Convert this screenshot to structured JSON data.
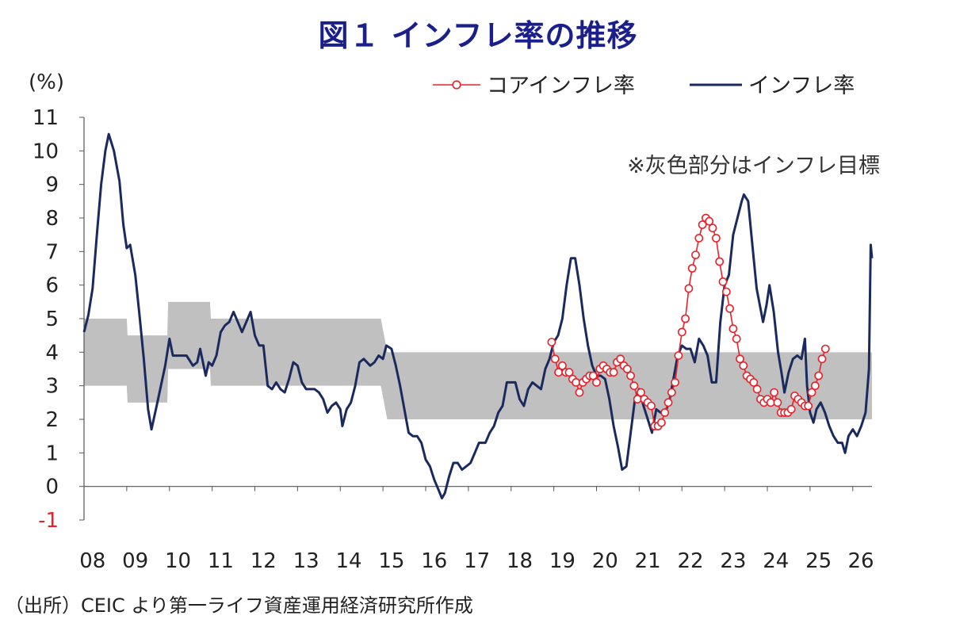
{
  "chart_data": {
    "type": "line",
    "title": "図１ インフレ率の推移",
    "ylabel": "(%)",
    "ylim": [
      -1,
      11
    ],
    "yticks": [
      -1,
      0,
      1,
      2,
      3,
      4,
      5,
      6,
      7,
      8,
      9,
      10,
      11
    ],
    "x_ticks": [
      "08",
      "09",
      "10",
      "11",
      "12",
      "13",
      "14",
      "15",
      "16",
      "17",
      "18",
      "19",
      "20",
      "21",
      "22",
      "23",
      "24",
      "25",
      "26"
    ],
    "xlim": [
      2008.0,
      2026.45
    ],
    "annotation": "※灰色部分はインフレ目標",
    "source": "（出所）CEIC より第一ライフ資産運用経済研究所作成",
    "legend_position": "top-right",
    "colors": {
      "core": "#e8222a",
      "headline": "#1b2a5e",
      "band": "#c0c0c0",
      "negative_tick": "#e8222a"
    },
    "target_band": [
      {
        "x": 2008.0,
        "low": 3.0,
        "high": 5.0
      },
      {
        "x": 2009.0,
        "low": 3.0,
        "high": 5.0
      },
      {
        "x": 2009.02,
        "low": 2.5,
        "high": 4.5
      },
      {
        "x": 2009.95,
        "low": 2.5,
        "high": 4.5
      },
      {
        "x": 2009.97,
        "low": 3.5,
        "high": 5.5
      },
      {
        "x": 2010.95,
        "low": 3.5,
        "high": 5.5
      },
      {
        "x": 2010.97,
        "low": 3.0,
        "high": 5.0
      },
      {
        "x": 2014.95,
        "low": 3.0,
        "high": 5.0
      },
      {
        "x": 2015.1,
        "low": 2.0,
        "high": 4.0
      },
      {
        "x": 2026.45,
        "low": 2.0,
        "high": 4.0
      }
    ],
    "series": [
      {
        "name": "インフレ率",
        "points": [
          [
            2008.0,
            4.6
          ],
          [
            2008.1,
            5.1
          ],
          [
            2008.2,
            5.9
          ],
          [
            2008.3,
            7.5
          ],
          [
            2008.4,
            9.0
          ],
          [
            2008.5,
            10.0
          ],
          [
            2008.58,
            10.5
          ],
          [
            2008.7,
            10.0
          ],
          [
            2008.83,
            9.1
          ],
          [
            2008.92,
            7.8
          ],
          [
            2009.0,
            7.1
          ],
          [
            2009.08,
            7.2
          ],
          [
            2009.2,
            6.3
          ],
          [
            2009.3,
            5.1
          ],
          [
            2009.4,
            3.8
          ],
          [
            2009.5,
            2.3
          ],
          [
            2009.58,
            1.7
          ],
          [
            2009.7,
            2.4
          ],
          [
            2009.8,
            3.0
          ],
          [
            2009.9,
            3.6
          ],
          [
            2010.0,
            4.4
          ],
          [
            2010.08,
            3.9
          ],
          [
            2010.2,
            3.9
          ],
          [
            2010.4,
            3.9
          ],
          [
            2010.55,
            3.6
          ],
          [
            2010.65,
            3.7
          ],
          [
            2010.72,
            4.1
          ],
          [
            2010.85,
            3.3
          ],
          [
            2010.92,
            3.7
          ],
          [
            2011.0,
            3.6
          ],
          [
            2011.1,
            3.9
          ],
          [
            2011.2,
            4.6
          ],
          [
            2011.3,
            4.8
          ],
          [
            2011.4,
            4.9
          ],
          [
            2011.5,
            5.2
          ],
          [
            2011.6,
            4.9
          ],
          [
            2011.7,
            4.6
          ],
          [
            2011.8,
            4.9
          ],
          [
            2011.9,
            5.2
          ],
          [
            2012.0,
            4.5
          ],
          [
            2012.1,
            4.2
          ],
          [
            2012.2,
            4.2
          ],
          [
            2012.3,
            3.0
          ],
          [
            2012.4,
            2.9
          ],
          [
            2012.5,
            3.1
          ],
          [
            2012.6,
            2.9
          ],
          [
            2012.7,
            2.8
          ],
          [
            2012.8,
            3.2
          ],
          [
            2012.9,
            3.7
          ],
          [
            2013.0,
            3.6
          ],
          [
            2013.1,
            3.1
          ],
          [
            2013.2,
            2.9
          ],
          [
            2013.3,
            2.9
          ],
          [
            2013.4,
            2.9
          ],
          [
            2013.5,
            2.8
          ],
          [
            2013.6,
            2.6
          ],
          [
            2013.7,
            2.2
          ],
          [
            2013.8,
            2.4
          ],
          [
            2013.9,
            2.5
          ],
          [
            2014.0,
            2.3
          ],
          [
            2014.05,
            1.8
          ],
          [
            2014.15,
            2.3
          ],
          [
            2014.25,
            2.5
          ],
          [
            2014.35,
            3.0
          ],
          [
            2014.45,
            3.7
          ],
          [
            2014.55,
            3.8
          ],
          [
            2014.7,
            3.6
          ],
          [
            2014.8,
            3.7
          ],
          [
            2014.9,
            3.9
          ],
          [
            2015.0,
            3.8
          ],
          [
            2015.08,
            4.2
          ],
          [
            2015.2,
            4.1
          ],
          [
            2015.3,
            3.6
          ],
          [
            2015.4,
            3.0
          ],
          [
            2015.5,
            2.3
          ],
          [
            2015.6,
            1.6
          ],
          [
            2015.7,
            1.5
          ],
          [
            2015.8,
            1.5
          ],
          [
            2015.9,
            1.3
          ],
          [
            2016.0,
            0.8
          ],
          [
            2016.1,
            0.6
          ],
          [
            2016.2,
            0.2
          ],
          [
            2016.3,
            -0.1
          ],
          [
            2016.38,
            -0.35
          ],
          [
            2016.45,
            -0.2
          ],
          [
            2016.55,
            0.3
          ],
          [
            2016.65,
            0.7
          ],
          [
            2016.75,
            0.7
          ],
          [
            2016.85,
            0.5
          ],
          [
            2016.95,
            0.6
          ],
          [
            2017.05,
            0.7
          ],
          [
            2017.15,
            1.0
          ],
          [
            2017.25,
            1.3
          ],
          [
            2017.4,
            1.3
          ],
          [
            2017.5,
            1.6
          ],
          [
            2017.6,
            1.8
          ],
          [
            2017.7,
            2.2
          ],
          [
            2017.8,
            2.4
          ],
          [
            2017.9,
            3.1
          ],
          [
            2018.0,
            3.1
          ],
          [
            2018.1,
            3.1
          ],
          [
            2018.2,
            2.6
          ],
          [
            2018.3,
            2.4
          ],
          [
            2018.4,
            2.9
          ],
          [
            2018.5,
            3.1
          ],
          [
            2018.6,
            3.0
          ],
          [
            2018.7,
            2.9
          ],
          [
            2018.8,
            3.5
          ],
          [
            2018.9,
            3.8
          ],
          [
            2019.0,
            4.3
          ],
          [
            2019.1,
            4.5
          ],
          [
            2019.2,
            5.0
          ],
          [
            2019.3,
            6.0
          ],
          [
            2019.4,
            6.8
          ],
          [
            2019.5,
            6.8
          ],
          [
            2019.6,
            6.0
          ],
          [
            2019.7,
            5.0
          ],
          [
            2019.8,
            4.2
          ],
          [
            2019.9,
            3.6
          ],
          [
            2020.0,
            3.3
          ],
          [
            2020.1,
            3.3
          ],
          [
            2020.2,
            3.2
          ],
          [
            2020.3,
            2.6
          ],
          [
            2020.4,
            1.8
          ],
          [
            2020.5,
            1.2
          ],
          [
            2020.6,
            0.5
          ],
          [
            2020.7,
            0.6
          ],
          [
            2020.8,
            1.6
          ],
          [
            2020.9,
            2.6
          ],
          [
            2021.0,
            2.9
          ],
          [
            2021.1,
            2.4
          ],
          [
            2021.2,
            2.0
          ],
          [
            2021.3,
            1.6
          ],
          [
            2021.4,
            2.3
          ],
          [
            2021.5,
            2.2
          ],
          [
            2021.6,
            2.2
          ],
          [
            2021.7,
            2.5
          ],
          [
            2021.8,
            3.2
          ],
          [
            2021.9,
            3.9
          ],
          [
            2022.0,
            4.2
          ],
          [
            2022.1,
            4.1
          ],
          [
            2022.2,
            4.1
          ],
          [
            2022.3,
            3.7
          ],
          [
            2022.4,
            4.4
          ],
          [
            2022.5,
            4.2
          ],
          [
            2022.6,
            3.9
          ],
          [
            2022.7,
            3.1
          ],
          [
            2022.8,
            3.1
          ],
          [
            2022.9,
            4.9
          ],
          [
            2023.0,
            6.0
          ],
          [
            2023.1,
            6.3
          ],
          [
            2023.2,
            7.5
          ],
          [
            2023.3,
            8.0
          ],
          [
            2023.4,
            8.5
          ],
          [
            2023.45,
            8.7
          ],
          [
            2023.55,
            8.5
          ],
          [
            2023.65,
            7.2
          ],
          [
            2023.75,
            5.9
          ],
          [
            2023.9,
            4.9
          ],
          [
            2023.98,
            5.4
          ],
          [
            2024.05,
            6.0
          ],
          [
            2024.15,
            5.2
          ],
          [
            2024.25,
            4.0
          ],
          [
            2024.33,
            3.4
          ],
          [
            2024.4,
            2.8
          ],
          [
            2024.5,
            3.4
          ],
          [
            2024.6,
            3.8
          ],
          [
            2024.7,
            3.9
          ],
          [
            2024.8,
            3.8
          ],
          [
            2024.88,
            4.4
          ],
          [
            2024.93,
            3.0
          ],
          [
            2025.0,
            2.2
          ],
          [
            2025.08,
            1.9
          ],
          [
            2025.15,
            2.3
          ],
          [
            2025.25,
            2.5
          ],
          [
            2025.35,
            2.2
          ],
          [
            2025.45,
            1.8
          ],
          [
            2025.55,
            1.5
          ],
          [
            2025.65,
            1.3
          ],
          [
            2025.75,
            1.3
          ],
          [
            2025.82,
            1.0
          ],
          [
            2025.9,
            1.5
          ],
          [
            2026.0,
            1.7
          ],
          [
            2026.1,
            1.5
          ],
          [
            2026.2,
            1.8
          ],
          [
            2026.3,
            2.2
          ],
          [
            2026.38,
            3.5
          ],
          [
            2026.42,
            7.2
          ],
          [
            2026.45,
            6.8
          ]
        ]
      },
      {
        "name": "コアインフレ率",
        "points": [
          [
            2018.95,
            4.3
          ],
          [
            2019.03,
            3.8
          ],
          [
            2019.11,
            3.4
          ],
          [
            2019.2,
            3.6
          ],
          [
            2019.28,
            3.4
          ],
          [
            2019.36,
            3.4
          ],
          [
            2019.44,
            3.2
          ],
          [
            2019.52,
            3.1
          ],
          [
            2019.6,
            2.8
          ],
          [
            2019.68,
            3.1
          ],
          [
            2019.76,
            3.2
          ],
          [
            2019.84,
            3.3
          ],
          [
            2019.92,
            3.3
          ],
          [
            2020.0,
            3.1
          ],
          [
            2020.08,
            3.5
          ],
          [
            2020.16,
            3.6
          ],
          [
            2020.24,
            3.5
          ],
          [
            2020.32,
            3.4
          ],
          [
            2020.4,
            3.4
          ],
          [
            2020.48,
            3.7
          ],
          [
            2020.56,
            3.8
          ],
          [
            2020.64,
            3.6
          ],
          [
            2020.72,
            3.5
          ],
          [
            2020.8,
            3.3
          ],
          [
            2020.88,
            3.0
          ],
          [
            2020.96,
            2.6
          ],
          [
            2021.04,
            2.8
          ],
          [
            2021.12,
            2.6
          ],
          [
            2021.2,
            2.5
          ],
          [
            2021.28,
            2.4
          ],
          [
            2021.36,
            1.8
          ],
          [
            2021.44,
            1.8
          ],
          [
            2021.52,
            1.9
          ],
          [
            2021.6,
            2.2
          ],
          [
            2021.68,
            2.5
          ],
          [
            2021.76,
            2.8
          ],
          [
            2021.84,
            3.1
          ],
          [
            2021.92,
            3.9
          ],
          [
            2022.0,
            4.6
          ],
          [
            2022.08,
            5.0
          ],
          [
            2022.16,
            5.9
          ],
          [
            2022.24,
            6.5
          ],
          [
            2022.32,
            6.9
          ],
          [
            2022.4,
            7.4
          ],
          [
            2022.48,
            7.8
          ],
          [
            2022.56,
            8.0
          ],
          [
            2022.64,
            7.9
          ],
          [
            2022.72,
            7.7
          ],
          [
            2022.8,
            7.4
          ],
          [
            2022.88,
            6.7
          ],
          [
            2022.96,
            6.1
          ],
          [
            2023.04,
            5.8
          ],
          [
            2023.12,
            5.3
          ],
          [
            2023.2,
            4.7
          ],
          [
            2023.28,
            4.4
          ],
          [
            2023.36,
            3.8
          ],
          [
            2023.44,
            3.6
          ],
          [
            2023.52,
            3.3
          ],
          [
            2023.6,
            3.2
          ],
          [
            2023.68,
            3.1
          ],
          [
            2023.76,
            2.9
          ],
          [
            2023.84,
            2.6
          ],
          [
            2023.92,
            2.5
          ],
          [
            2024.0,
            2.6
          ],
          [
            2024.08,
            2.5
          ],
          [
            2024.16,
            2.8
          ],
          [
            2024.24,
            2.5
          ],
          [
            2024.32,
            2.2
          ],
          [
            2024.4,
            2.2
          ],
          [
            2024.48,
            2.2
          ],
          [
            2024.56,
            2.3
          ],
          [
            2024.64,
            2.7
          ],
          [
            2024.72,
            2.6
          ],
          [
            2024.8,
            2.5
          ],
          [
            2024.88,
            2.4
          ],
          [
            2024.96,
            2.4
          ],
          [
            2025.04,
            2.8
          ],
          [
            2025.12,
            3.0
          ],
          [
            2025.2,
            3.3
          ],
          [
            2025.28,
            3.8
          ],
          [
            2025.36,
            4.1
          ]
        ]
      }
    ]
  }
}
